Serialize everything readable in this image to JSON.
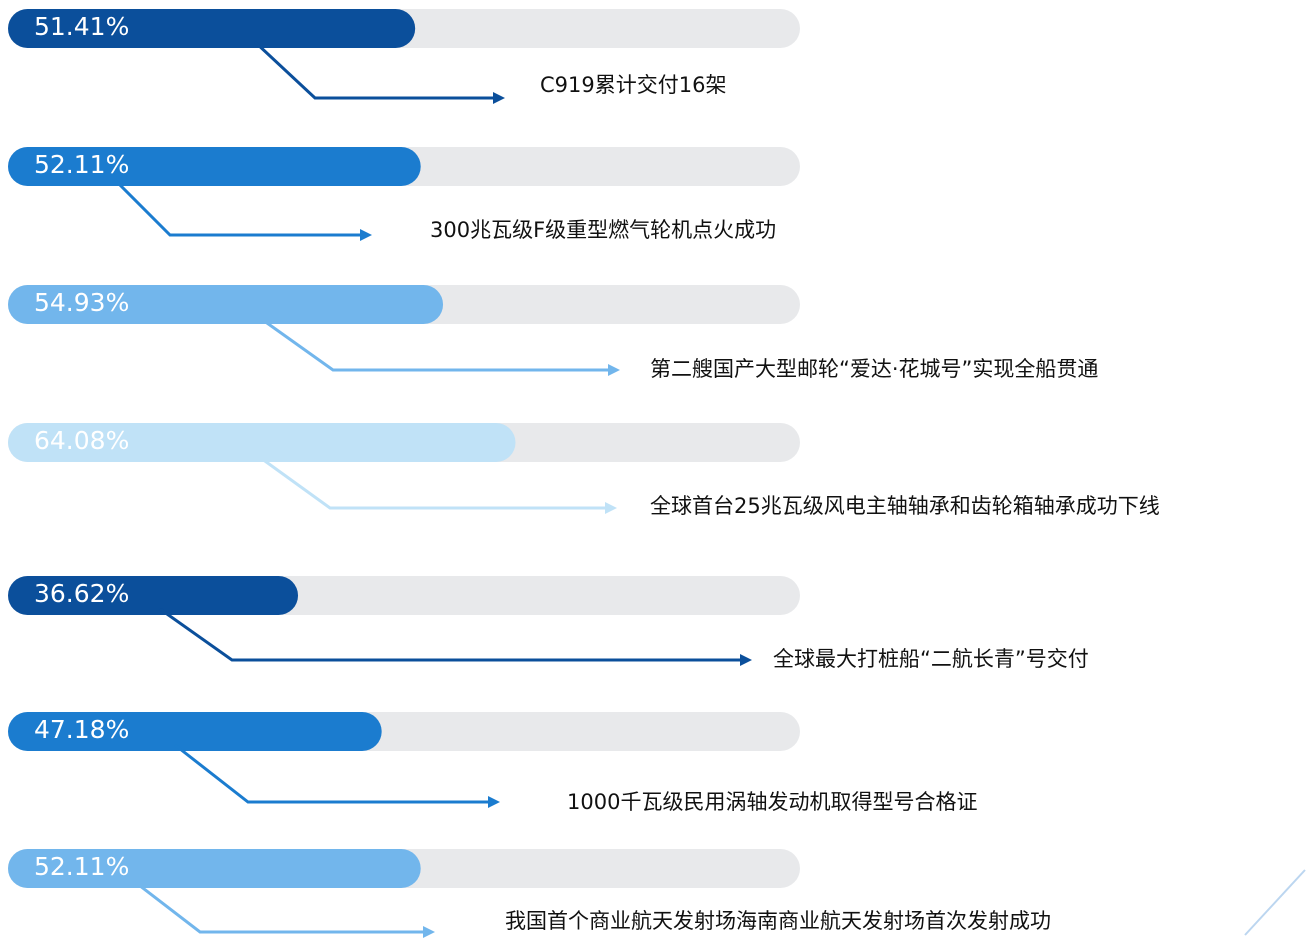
{
  "chart_data": {
    "type": "bar",
    "orientation": "horizontal",
    "categories": [
      "C919累计交付16架",
      "300兆瓦级F级重型燃气轮机点火成功",
      "第二艘国产大型邮轮“爱达·花城号”实现全船贯通",
      "全球首台25兆瓦级风电主轴轴承和齿轮箱轴承成功下线",
      "全球最大打桩船“二航长青”号交付",
      "1000千瓦级民用涡轴发动机取得型号合格证",
      "我国首个商业航天发射场海南商业航天发射场首次发射成功"
    ],
    "values": [
      51.41,
      52.11,
      54.93,
      64.08,
      36.62,
      47.18,
      52.11
    ],
    "value_labels": [
      "51.41%",
      "52.11%",
      "54.93%",
      "64.08%",
      "36.62%",
      "47.18%",
      "52.11%"
    ],
    "colors": [
      "#0b4f9b",
      "#1b7ccf",
      "#72b6ec",
      "#c0e2f7",
      "#0b4f9b",
      "#1b7ccf",
      "#72b6ec"
    ],
    "track_color": "#e8e9eb",
    "xlim": [
      0,
      100
    ]
  }
}
